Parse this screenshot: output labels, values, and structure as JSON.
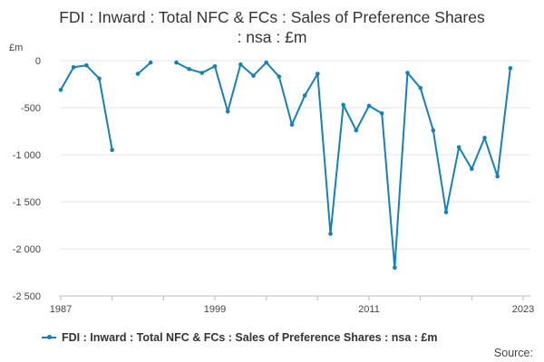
{
  "chart_data": {
    "type": "line",
    "title_line1": "FDI : Inward : Total NFC & FCs : Sales of Preference Shares",
    "title_line2": ": nsa : £m",
    "ylabel": "£m",
    "xlabel": "",
    "ylim": [
      -2500,
      0
    ],
    "xlim": [
      1987,
      2023
    ],
    "y_ticks": [
      0,
      -500,
      -1000,
      -1500,
      -2000,
      -2500
    ],
    "y_tick_labels": [
      "0",
      "-500",
      "-1 000",
      "-1 500",
      "-2 000",
      "-2 500"
    ],
    "x_ticks": [
      1987,
      1999,
      2011,
      2023
    ],
    "x_tick_labels": [
      "1987",
      "1999",
      "2011",
      "2023"
    ],
    "grid": true,
    "legend_position": "bottom",
    "color": "#1a7fb4",
    "series": [
      {
        "name": "FDI : Inward : Total NFC & FCs : Sales of Preference Shares : nsa : £m",
        "x": [
          1987,
          1988,
          1989,
          1990,
          1991,
          1992,
          1993,
          1994,
          1995,
          1996,
          1997,
          1998,
          1999,
          2000,
          2001,
          2002,
          2003,
          2004,
          2005,
          2006,
          2007,
          2008,
          2009,
          2010,
          2011,
          2012,
          2013,
          2014,
          2015,
          2016,
          2017,
          2018,
          2019,
          2020,
          2021,
          2022,
          2023
        ],
        "values": [
          -310,
          -70,
          -50,
          -190,
          -950,
          null,
          -140,
          -20,
          null,
          -20,
          -90,
          -130,
          -60,
          -540,
          -40,
          -160,
          -20,
          -170,
          -680,
          -370,
          -140,
          -1840,
          -470,
          -740,
          -480,
          -560,
          -2200,
          -130,
          -290,
          -740,
          -1610,
          -920,
          -1150,
          -820,
          -1230,
          -80,
          null
        ]
      }
    ]
  },
  "legend": {
    "label": "FDI : Inward : Total NFC & FCs : Sales of Preference Shares : nsa : £m"
  },
  "source_label": "Source:"
}
